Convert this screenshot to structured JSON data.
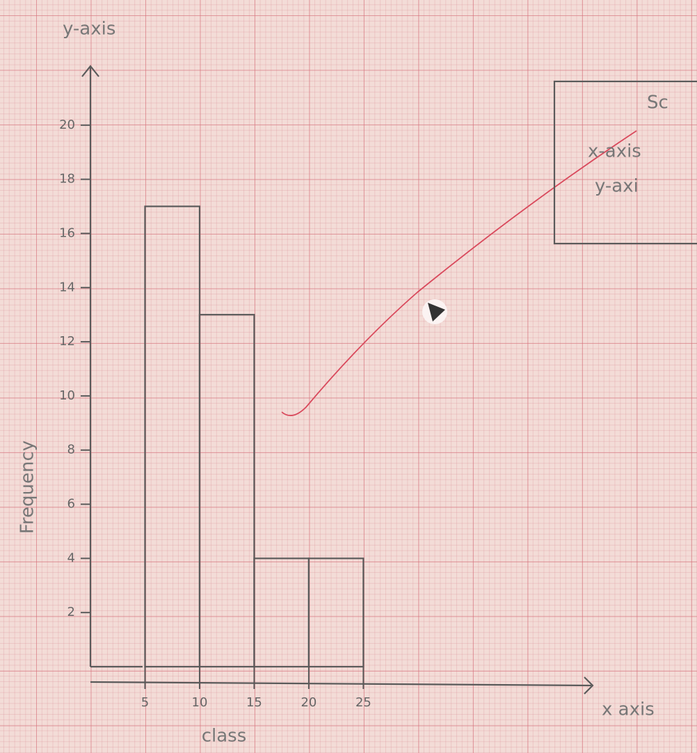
{
  "chart_data": {
    "type": "histogram",
    "y_axis_label": "y-axis",
    "x_axis_label": "x axis",
    "y_label": "Frequency",
    "x_label": "class",
    "bins": [
      5,
      10,
      15,
      20,
      25
    ],
    "values": [
      17,
      13,
      4,
      4
    ],
    "color": "#5a5a5a",
    "xlim": [
      0,
      46
    ],
    "ylim": [
      0,
      22
    ],
    "xticks": [
      5,
      10,
      15,
      20,
      25
    ],
    "yticks": [
      2,
      4,
      6,
      8,
      10,
      12,
      14,
      16,
      18,
      20
    ]
  },
  "scale_box": {
    "title": "Sc",
    "lines": [
      "x-axis",
      "y-axi"
    ]
  }
}
